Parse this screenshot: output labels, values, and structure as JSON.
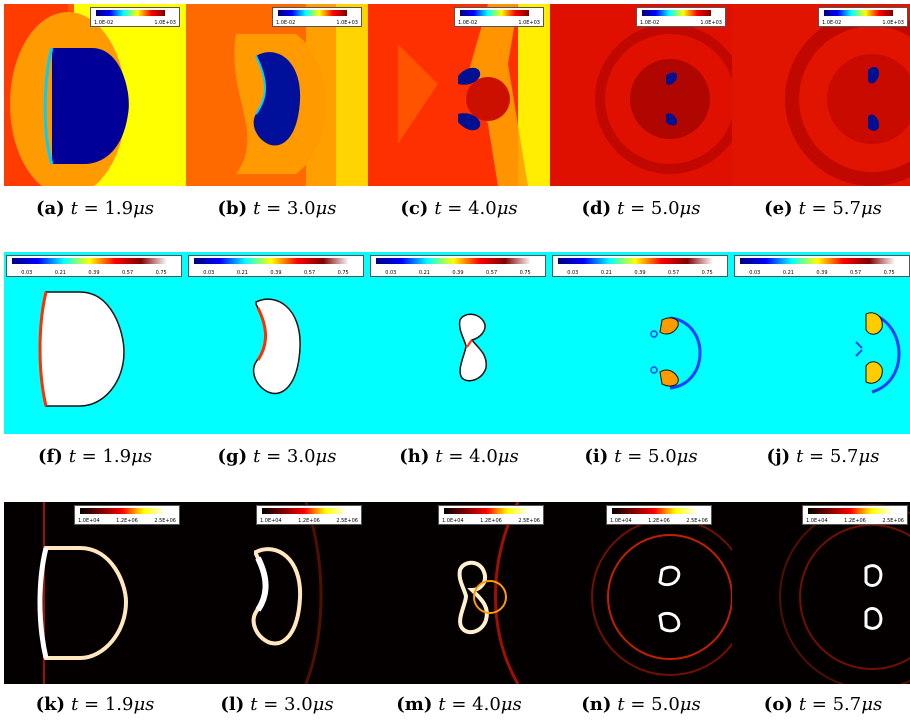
{
  "rows": [
    {
      "colorbar_ticks": [
        "1.0E-02",
        "1.0E+03"
      ],
      "panels": [
        {
          "label": "(a)",
          "time": "1.9"
        },
        {
          "label": "(b)",
          "time": "3.0"
        },
        {
          "label": "(c)",
          "time": "4.0"
        },
        {
          "label": "(d)",
          "time": "5.0"
        },
        {
          "label": "(e)",
          "time": "5.7"
        }
      ]
    },
    {
      "colorbar_ticks": [
        "0.03",
        "0.21",
        "0.39",
        "0.57",
        "0.75"
      ],
      "panels": [
        {
          "label": "(f)",
          "time": "1.9"
        },
        {
          "label": "(g)",
          "time": "3.0"
        },
        {
          "label": "(h)",
          "time": "4.0"
        },
        {
          "label": "(i)",
          "time": "5.0"
        },
        {
          "label": "(j)",
          "time": "5.7"
        }
      ]
    },
    {
      "colorbar_ticks": [
        "1.0E+04",
        "1.2E+06",
        "2.5E+06"
      ],
      "panels": [
        {
          "label": "(k)",
          "time": "1.9"
        },
        {
          "label": "(l)",
          "time": "3.0"
        },
        {
          "label": "(m)",
          "time": "4.0"
        },
        {
          "label": "(n)",
          "time": "5.0"
        },
        {
          "label": "(o)",
          "time": "5.7"
        }
      ]
    }
  ],
  "caption_var": "t",
  "caption_eq": " = ",
  "caption_unit": "μs"
}
